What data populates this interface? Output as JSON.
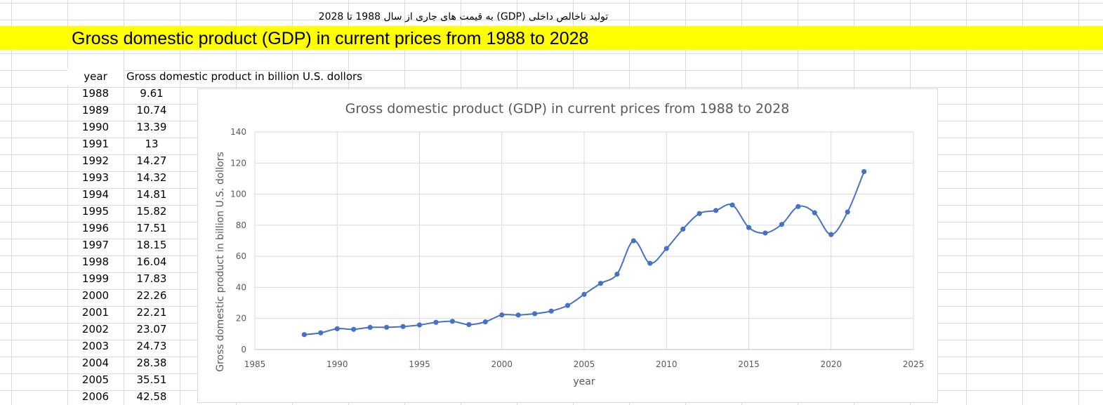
{
  "sheet": {
    "persian_title": "تولید ناخالص داخلی (GDP) به قیمت های جاری از سال 1988 تا 2028",
    "banner_title": "Gross domestic product (GDP) in current prices from 1988 to 2028",
    "table_headers": {
      "year": "year",
      "gdp": "Gross domestic product in billion U.S. dollors"
    },
    "rows": [
      {
        "year": "1988",
        "gdp": "9.61"
      },
      {
        "year": "1989",
        "gdp": "10.74"
      },
      {
        "year": "1990",
        "gdp": "13.39"
      },
      {
        "year": "1991",
        "gdp": "13"
      },
      {
        "year": "1992",
        "gdp": "14.27"
      },
      {
        "year": "1993",
        "gdp": "14.32"
      },
      {
        "year": "1994",
        "gdp": "14.81"
      },
      {
        "year": "1995",
        "gdp": "15.82"
      },
      {
        "year": "1996",
        "gdp": "17.51"
      },
      {
        "year": "1997",
        "gdp": "18.15"
      },
      {
        "year": "1998",
        "gdp": "16.04"
      },
      {
        "year": "1999",
        "gdp": "17.83"
      },
      {
        "year": "2000",
        "gdp": "22.26"
      },
      {
        "year": "2001",
        "gdp": "22.21"
      },
      {
        "year": "2002",
        "gdp": "23.07"
      },
      {
        "year": "2003",
        "gdp": "24.73"
      },
      {
        "year": "2004",
        "gdp": "28.38"
      },
      {
        "year": "2005",
        "gdp": "35.51"
      },
      {
        "year": "2006",
        "gdp": "42.58"
      }
    ]
  },
  "chart_data": {
    "type": "scatter",
    "title": "Gross domestic product (GDP) in current prices from 1988 to 2028",
    "xlabel": "year",
    "ylabel": "Gross domestic product in billion U.S. dollors",
    "xlim": [
      1985,
      2025
    ],
    "ylim": [
      0,
      140
    ],
    "xticks": [
      1985,
      1990,
      1995,
      2000,
      2005,
      2010,
      2015,
      2020,
      2025
    ],
    "yticks": [
      0,
      20,
      40,
      60,
      80,
      100,
      120,
      140
    ],
    "grid": true,
    "smooth": true,
    "color": "#4472c4",
    "x": [
      1988,
      1989,
      1990,
      1991,
      1992,
      1993,
      1994,
      1995,
      1996,
      1997,
      1998,
      1999,
      2000,
      2001,
      2002,
      2003,
      2004,
      2005,
      2006,
      2007,
      2008,
      2009,
      2010,
      2011,
      2012,
      2013,
      2014,
      2015,
      2016,
      2017,
      2018,
      2019,
      2020,
      2021,
      2022
    ],
    "y": [
      9.61,
      10.74,
      13.39,
      13,
      14.27,
      14.32,
      14.81,
      15.82,
      17.51,
      18.15,
      16.04,
      17.83,
      22.26,
      22.21,
      23.07,
      24.73,
      28.38,
      35.51,
      42.58,
      48.5,
      70,
      55.5,
      65,
      77.5,
      87.5,
      89.5,
      93,
      78.5,
      75,
      80.5,
      92,
      88,
      74,
      88.5,
      114.5
    ]
  }
}
